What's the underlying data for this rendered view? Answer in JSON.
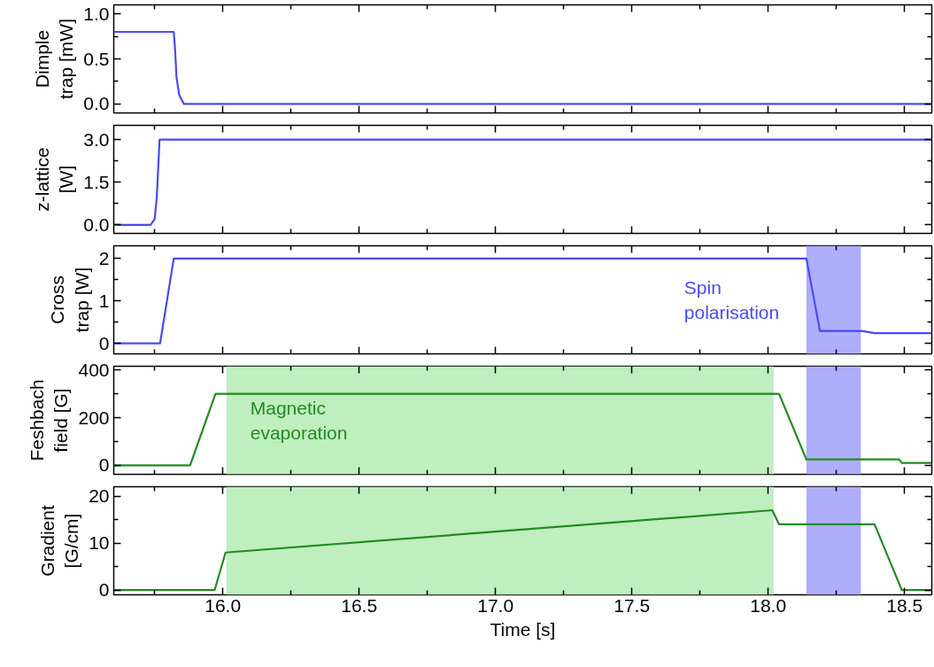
{
  "chart_data": [
    {
      "type": "line",
      "ylabel": "Dimple trap [mW]",
      "xlim": [
        15.6,
        18.6
      ],
      "ylim": [
        -0.1,
        1.1
      ],
      "tick_labels": "y",
      "xticks": [
        {
          "value": 15.75,
          "label": null
        },
        16,
        {
          "value": 16.25,
          "label": null
        },
        16.5,
        {
          "value": 16.75,
          "label": null
        },
        17,
        {
          "value": 17.25,
          "label": null
        },
        17.5,
        {
          "value": 17.75,
          "label": null
        },
        18,
        {
          "value": 18.25,
          "label": null
        },
        18.5
      ],
      "yticks": [
        {
          "value": 0,
          "label": "0.0"
        },
        {
          "value": 0.25,
          "label": null
        },
        0.5,
        {
          "value": 0.75,
          "label": null
        },
        {
          "value": 1,
          "label": "1.0"
        }
      ],
      "series": [
        {
          "color": "#4a4af2",
          "x": [
            15.6,
            15.82,
            15.825,
            15.83,
            15.84,
            15.857,
            18.6
          ],
          "values": [
            0.8,
            0.8,
            0.6,
            0.3,
            0.1,
            0,
            0
          ]
        }
      ]
    },
    {
      "type": "line",
      "ylabel": "z-lattice [W]",
      "xlim": [
        15.6,
        18.6
      ],
      "ylim": [
        -0.3,
        3.5
      ],
      "tick_labels": "y",
      "xticks": [
        {
          "value": 15.75,
          "label": null
        },
        16,
        {
          "value": 16.25,
          "label": null
        },
        16.5,
        {
          "value": 16.75,
          "label": null
        },
        17,
        {
          "value": 17.25,
          "label": null
        },
        17.5,
        {
          "value": 17.75,
          "label": null
        },
        18,
        {
          "value": 18.25,
          "label": null
        },
        18.5
      ],
      "yticks": [
        {
          "value": 0,
          "label": "0.0"
        },
        {
          "value": 0.75,
          "label": null
        },
        1.5,
        {
          "value": 2.25,
          "label": null
        },
        {
          "value": 3,
          "label": "3.0"
        }
      ],
      "series": [
        {
          "color": "#4a4af2",
          "x": [
            15.6,
            15.735,
            15.75,
            15.758,
            15.763,
            15.768,
            18.6
          ],
          "values": [
            0,
            0,
            0.2,
            1.0,
            2.0,
            3.0,
            3.0
          ]
        }
      ]
    },
    {
      "type": "line",
      "ylabel": "Cross trap [W]",
      "xlim": [
        15.6,
        18.6
      ],
      "ylim": [
        -0.25,
        2.3
      ],
      "tick_labels": "y",
      "xticks": [
        {
          "value": 15.75,
          "label": null
        },
        16,
        {
          "value": 16.25,
          "label": null
        },
        16.5,
        {
          "value": 16.75,
          "label": null
        },
        17,
        {
          "value": 17.25,
          "label": null
        },
        17.5,
        {
          "value": 17.75,
          "label": null
        },
        18,
        {
          "value": 18.25,
          "label": null
        },
        18.5
      ],
      "yticks": [
        0,
        {
          "value": 0.5,
          "label": null
        },
        1,
        {
          "value": 1.5,
          "label": null
        },
        2
      ],
      "bands": [
        {
          "axis": "x",
          "from": 18.14,
          "to": 18.34,
          "color": "#aeaefa",
          "label": "Spin polarisation"
        }
      ],
      "series": [
        {
          "color": "#4a4af2",
          "x": [
            15.6,
            15.77,
            15.82,
            18.14,
            18.19,
            18.344,
            18.39,
            18.6
          ],
          "values": [
            0,
            0,
            2,
            2,
            0.29,
            0.29,
            0.24,
            0.24
          ]
        }
      ]
    },
    {
      "type": "line",
      "ylabel": "Feshbach field [G]",
      "xlim": [
        15.6,
        18.6
      ],
      "ylim": [
        -38,
        416
      ],
      "tick_labels": "y",
      "xticks": [
        {
          "value": 15.75,
          "label": null
        },
        16,
        {
          "value": 16.25,
          "label": null
        },
        16.5,
        {
          "value": 16.75,
          "label": null
        },
        17,
        {
          "value": 17.25,
          "label": null
        },
        17.5,
        {
          "value": 17.75,
          "label": null
        },
        18,
        {
          "value": 18.25,
          "label": null
        },
        18.5
      ],
      "yticks": [
        0,
        {
          "value": 100,
          "label": null
        },
        200,
        {
          "value": 300,
          "label": null
        },
        400
      ],
      "bands": [
        {
          "axis": "x",
          "from": 16.013,
          "to": 18.02,
          "color": "#bfeebf",
          "label": "Magnetic evaporation"
        },
        {
          "axis": "x",
          "from": 18.14,
          "to": 18.34,
          "color": "#aeaefa"
        }
      ],
      "series": [
        {
          "color": "#228b22",
          "x": [
            15.6,
            15.88,
            15.973,
            18.04,
            18.14,
            18.48,
            18.49,
            18.6
          ],
          "values": [
            0,
            0,
            300,
            300,
            25,
            25,
            10,
            10
          ]
        }
      ]
    },
    {
      "type": "line",
      "ylabel": "Gradient [G/cm]",
      "xlabel": "Time [s]",
      "xlim": [
        15.6,
        18.6
      ],
      "ylim": [
        -1,
        22
      ],
      "xticks": [
        {
          "value": 15.75,
          "label": null
        },
        {
          "value": 16,
          "label": "16.0"
        },
        {
          "value": 16.25,
          "label": null
        },
        16.5,
        {
          "value": 16.75,
          "label": null
        },
        {
          "value": 17,
          "label": "17.0"
        },
        {
          "value": 17.25,
          "label": null
        },
        17.5,
        {
          "value": 17.75,
          "label": null
        },
        {
          "value": 18,
          "label": "18.0"
        },
        {
          "value": 18.25,
          "label": null
        },
        18.5
      ],
      "yticks": [
        0,
        {
          "value": 5,
          "label": null
        },
        10,
        {
          "value": 15,
          "label": null
        },
        20
      ],
      "bands": [
        {
          "axis": "x",
          "from": 16.013,
          "to": 18.02,
          "color": "#bfeebf"
        },
        {
          "axis": "x",
          "from": 18.14,
          "to": 18.34,
          "color": "#aeaefa"
        }
      ],
      "series": [
        {
          "color": "#228b22",
          "x": [
            15.6,
            15.97,
            16.01,
            18.015,
            18.04,
            18.39,
            18.49,
            18.6
          ],
          "values": [
            0,
            0,
            8,
            17,
            14,
            14,
            0,
            0
          ]
        }
      ]
    }
  ]
}
